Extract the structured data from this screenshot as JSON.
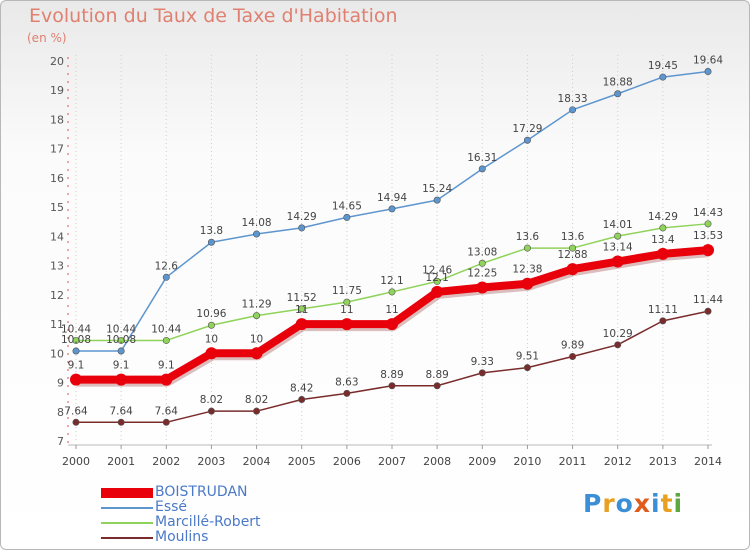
{
  "header": {
    "title": "Evolution du Taux de Taxe d'Habitation",
    "unit": "(en %)"
  },
  "logo": {
    "text": "Proxiti",
    "colors": [
      "#3a8fd6",
      "#e8a020",
      "#3a8fd6",
      "#e05a1a",
      "#3a8fd6",
      "#e8a020",
      "#5aa840"
    ]
  },
  "chart_data": {
    "type": "line",
    "title": "Evolution du Taux de Taxe d'Habitation",
    "ylabel": "(en %)",
    "xlabel": "",
    "x": [
      "2000",
      "2001",
      "2002",
      "2003",
      "2004",
      "2005",
      "2006",
      "2007",
      "2008",
      "2009",
      "2010",
      "2011",
      "2012",
      "2013",
      "2014"
    ],
    "ylim": [
      7,
      20
    ],
    "yticks": [
      "7",
      "8",
      "9",
      "10",
      "11",
      "12",
      "13",
      "14",
      "15",
      "16",
      "17",
      "18",
      "19",
      "20"
    ],
    "grid": "vertical dotted",
    "legend_position": "bottom-left",
    "series": [
      {
        "name": "BOISTRUDAN",
        "color": "#e8000b",
        "values": [
          9.1,
          9.1,
          9.1,
          10,
          10,
          11,
          11,
          11,
          12.1,
          12.25,
          12.38,
          12.88,
          13.14,
          13.4,
          13.53
        ],
        "labels": [
          "9.1",
          "9.1",
          "9.1",
          "10",
          "10",
          "11",
          "11",
          "11",
          "12.1",
          "12.25",
          "12.38",
          "12.88",
          "13.14",
          "13.4",
          "13.53"
        ]
      },
      {
        "name": "Essé",
        "color": "#5d95ce",
        "values": [
          10.08,
          10.08,
          12.6,
          13.8,
          14.08,
          14.29,
          14.65,
          14.94,
          15.24,
          16.31,
          17.29,
          18.33,
          18.88,
          19.45,
          19.64
        ],
        "labels": [
          "10.08",
          "10.08",
          "12.6",
          "13.8",
          "14.08",
          "14.29",
          "14.65",
          "14.94",
          "15.24",
          "16.31",
          "17.29",
          "18.33",
          "18.88",
          "19.45",
          "19.64"
        ]
      },
      {
        "name": "Marcillé-Robert",
        "color": "#8fd35a",
        "values": [
          10.44,
          10.44,
          10.44,
          10.96,
          11.29,
          11.52,
          11.75,
          12.1,
          12.46,
          13.08,
          13.6,
          13.6,
          14.01,
          14.29,
          14.43
        ],
        "labels": [
          "10.44",
          "10.44",
          "10.44",
          "10.96",
          "11.29",
          "11.52",
          "11.75",
          "12.1",
          "12.46",
          "13.08",
          "13.6",
          "13.6",
          "14.01",
          "14.29",
          "14.43"
        ]
      },
      {
        "name": "Moulins",
        "color": "#7a2c2c",
        "values": [
          7.64,
          7.64,
          7.64,
          8.02,
          8.02,
          8.42,
          8.63,
          8.89,
          8.89,
          9.33,
          9.51,
          9.89,
          10.29,
          11.11,
          11.44
        ],
        "labels": [
          "7.64",
          "7.64",
          "7.64",
          "8.02",
          "8.02",
          "8.42",
          "8.63",
          "8.89",
          "8.89",
          "9.33",
          "9.51",
          "9.89",
          "10.29",
          "11.11",
          "11.44"
        ]
      }
    ]
  }
}
